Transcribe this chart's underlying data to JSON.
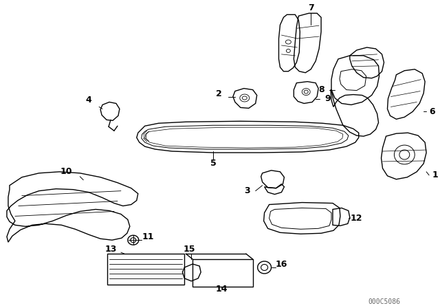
{
  "bg_color": "#ffffff",
  "line_color": "#000000",
  "fig_width": 6.4,
  "fig_height": 4.48,
  "dpi": 100,
  "watermark": "000C5086"
}
